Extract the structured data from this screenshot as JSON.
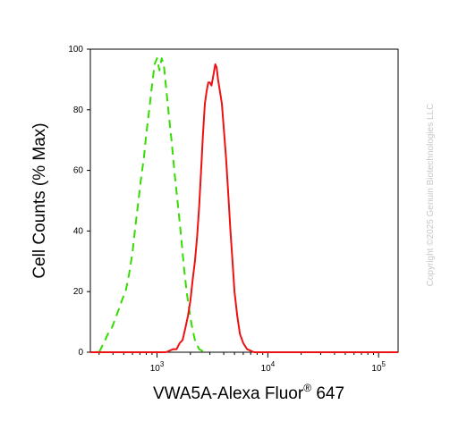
{
  "chart_data": {
    "type": "line",
    "title": "",
    "xlabel": "VWA5A-Alexa Fluor",
    "xlabel_superscript": "®",
    "xlabel_suffix": " 647",
    "ylabel": "Cell Counts (% Max)",
    "xscale": "log",
    "xlim": [
      250,
      150000
    ],
    "ylim": [
      0,
      100
    ],
    "yticks": [
      0,
      20,
      40,
      60,
      80,
      100
    ],
    "xticks": [
      {
        "value": 1000,
        "base": "10",
        "exp": "3"
      },
      {
        "value": 10000,
        "base": "10",
        "exp": "4"
      },
      {
        "value": 100000,
        "base": "10",
        "exp": "5"
      }
    ],
    "grid": false,
    "series": [
      {
        "color": "#33dd00",
        "dash": "dashed",
        "points": [
          [
            300,
            0
          ],
          [
            330,
            3
          ],
          [
            360,
            6
          ],
          [
            390,
            8
          ],
          [
            420,
            11
          ],
          [
            450,
            14
          ],
          [
            480,
            17
          ],
          [
            520,
            20
          ],
          [
            560,
            26
          ],
          [
            600,
            33
          ],
          [
            640,
            42
          ],
          [
            680,
            50
          ],
          [
            720,
            58
          ],
          [
            760,
            64
          ],
          [
            800,
            72
          ],
          [
            850,
            80
          ],
          [
            900,
            88
          ],
          [
            950,
            95
          ],
          [
            1000,
            97
          ],
          [
            1050,
            93
          ],
          [
            1100,
            97
          ],
          [
            1150,
            95
          ],
          [
            1200,
            88
          ],
          [
            1280,
            78
          ],
          [
            1350,
            70
          ],
          [
            1450,
            58
          ],
          [
            1550,
            48
          ],
          [
            1650,
            38
          ],
          [
            1750,
            28
          ],
          [
            1850,
            20
          ],
          [
            1950,
            14
          ],
          [
            2050,
            9
          ],
          [
            2200,
            4
          ],
          [
            2400,
            1
          ],
          [
            2700,
            0
          ]
        ]
      },
      {
        "color": "#ee1111",
        "dash": "solid",
        "points": [
          [
            250,
            0
          ],
          [
            1200,
            0
          ],
          [
            1400,
            1
          ],
          [
            1500,
            1
          ],
          [
            1600,
            3
          ],
          [
            1700,
            4
          ],
          [
            1800,
            8
          ],
          [
            1900,
            12
          ],
          [
            2000,
            17
          ],
          [
            2100,
            24
          ],
          [
            2200,
            30
          ],
          [
            2300,
            38
          ],
          [
            2400,
            48
          ],
          [
            2500,
            60
          ],
          [
            2600,
            72
          ],
          [
            2700,
            82
          ],
          [
            2800,
            86
          ],
          [
            2900,
            89
          ],
          [
            3000,
            89
          ],
          [
            3100,
            88
          ],
          [
            3250,
            92
          ],
          [
            3350,
            95
          ],
          [
            3450,
            94
          ],
          [
            3550,
            90
          ],
          [
            3700,
            86
          ],
          [
            3850,
            82
          ],
          [
            4000,
            74
          ],
          [
            4200,
            64
          ],
          [
            4400,
            52
          ],
          [
            4600,
            40
          ],
          [
            4800,
            30
          ],
          [
            5000,
            20
          ],
          [
            5300,
            12
          ],
          [
            5600,
            6
          ],
          [
            6000,
            3
          ],
          [
            6500,
            1
          ],
          [
            7500,
            0
          ],
          [
            150000,
            0
          ]
        ]
      }
    ]
  },
  "watermark": "Copyright ©2025 Genuin Biotechnologies LLC"
}
